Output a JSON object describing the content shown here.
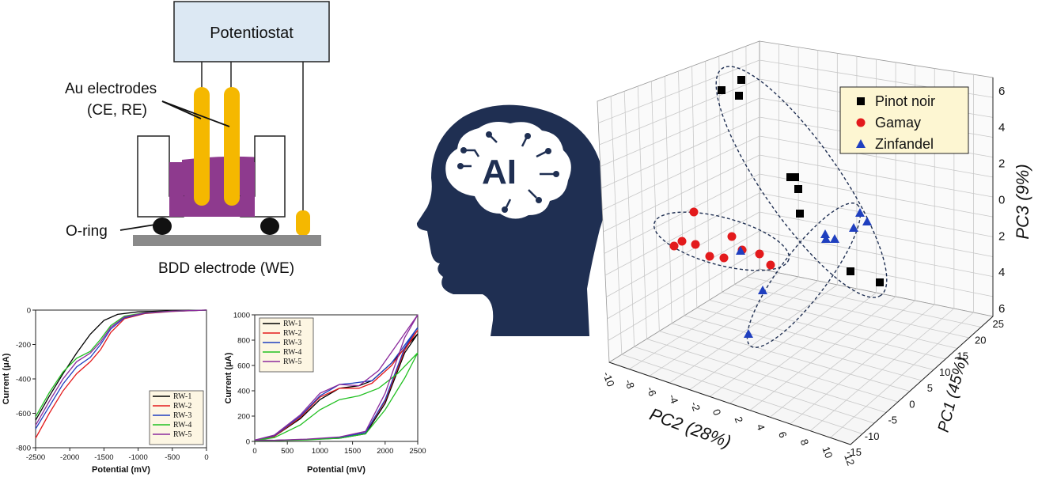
{
  "setup": {
    "potentiostat": "Potentiostat",
    "au_electrodes_line1": "Au electrodes",
    "au_electrodes_line2": "(CE, RE)",
    "oring": "O-ring",
    "bdd": "BDD electrode (WE)"
  },
  "ai": {
    "label": "AI"
  },
  "colors": {
    "cell": "#8e3a8e",
    "electrode": "#f5b800",
    "potentiostat": "#dce8f3",
    "head": "#1f2f52",
    "bdd": "#8a8a8a"
  },
  "chart_data": [
    {
      "type": "line",
      "xlabel": "Potential (mV)",
      "ylabel": "Current (μA)",
      "xlim": [
        -2500,
        0
      ],
      "ylim": [
        -800,
        0
      ],
      "xticks": [
        "-2500",
        "-2000",
        "-1500",
        "-1000",
        "-500",
        "0"
      ],
      "yticks": [
        "0",
        "-200",
        "-400",
        "-600",
        "-800"
      ],
      "legend": "bottom-right",
      "series": [
        {
          "name": "RW-1",
          "color": "#000000",
          "points": [
            [
              -2500,
              -640
            ],
            [
              -2300,
              -500
            ],
            [
              -2100,
              -370
            ],
            [
              -1900,
              -250
            ],
            [
              -1700,
              -140
            ],
            [
              -1500,
              -60
            ],
            [
              -1300,
              -25
            ],
            [
              -1000,
              -10
            ],
            [
              -500,
              -4
            ],
            [
              0,
              0
            ]
          ]
        },
        {
          "name": "RW-2",
          "color": "#e31a1c",
          "points": [
            [
              -2500,
              -745
            ],
            [
              -2300,
              -600
            ],
            [
              -2100,
              -470
            ],
            [
              -1900,
              -370
            ],
            [
              -1700,
              -300
            ],
            [
              -1550,
              -230
            ],
            [
              -1400,
              -130
            ],
            [
              -1200,
              -50
            ],
            [
              -900,
              -20
            ],
            [
              -500,
              -8
            ],
            [
              0,
              0
            ]
          ]
        },
        {
          "name": "RW-3",
          "color": "#1f3fbf",
          "points": [
            [
              -2500,
              -690
            ],
            [
              -2300,
              -560
            ],
            [
              -2100,
              -430
            ],
            [
              -1900,
              -330
            ],
            [
              -1700,
              -275
            ],
            [
              -1550,
              -200
            ],
            [
              -1400,
              -110
            ],
            [
              -1200,
              -45
            ],
            [
              -900,
              -18
            ],
            [
              -500,
              -7
            ],
            [
              0,
              0
            ]
          ]
        },
        {
          "name": "RW-4",
          "color": "#22c022",
          "points": [
            [
              -2500,
              -620
            ],
            [
              -2300,
              -480
            ],
            [
              -2100,
              -360
            ],
            [
              -1900,
              -280
            ],
            [
              -1700,
              -240
            ],
            [
              -1550,
              -170
            ],
            [
              -1400,
              -90
            ],
            [
              -1200,
              -35
            ],
            [
              -900,
              -15
            ],
            [
              -500,
              -6
            ],
            [
              0,
              0
            ]
          ]
        },
        {
          "name": "RW-5",
          "color": "#8b2a9c",
          "points": [
            [
              -2500,
              -670
            ],
            [
              -2300,
              -530
            ],
            [
              -2100,
              -400
            ],
            [
              -1900,
              -300
            ],
            [
              -1700,
              -250
            ],
            [
              -1550,
              -185
            ],
            [
              -1400,
              -100
            ],
            [
              -1200,
              -40
            ],
            [
              -900,
              -16
            ],
            [
              -500,
              -6
            ],
            [
              0,
              0
            ]
          ]
        }
      ]
    },
    {
      "type": "line",
      "xlabel": "Potential (mV)",
      "ylabel": "Current (μA)",
      "xlim": [
        0,
        2500
      ],
      "ylim": [
        0,
        1000
      ],
      "xticks": [
        "0",
        "500",
        "1000",
        "1500",
        "2000",
        "2500"
      ],
      "yticks": [
        "0",
        "200",
        "400",
        "600",
        "800",
        "1000"
      ],
      "legend": "top-left",
      "series": [
        {
          "name": "RW-1",
          "color": "#000000",
          "points": [
            [
              0,
              10
            ],
            [
              300,
              40
            ],
            [
              700,
              180
            ],
            [
              1000,
              330
            ],
            [
              1300,
              420
            ],
            [
              1600,
              440
            ],
            [
              1800,
              480
            ],
            [
              2100,
              620
            ],
            [
              2500,
              850
            ],
            [
              2300,
              700
            ],
            [
              2000,
              300
            ],
            [
              1700,
              60
            ],
            [
              1300,
              25
            ],
            [
              800,
              15
            ],
            [
              300,
              8
            ],
            [
              0,
              10
            ]
          ]
        },
        {
          "name": "RW-2",
          "color": "#e31a1c",
          "points": [
            [
              0,
              10
            ],
            [
              300,
              40
            ],
            [
              700,
              190
            ],
            [
              1000,
              350
            ],
            [
              1300,
              420
            ],
            [
              1600,
              420
            ],
            [
              1800,
              460
            ],
            [
              2100,
              600
            ],
            [
              2500,
              880
            ],
            [
              2300,
              720
            ],
            [
              2000,
              320
            ],
            [
              1700,
              70
            ],
            [
              1300,
              30
            ],
            [
              800,
              15
            ],
            [
              300,
              8
            ],
            [
              0,
              10
            ]
          ]
        },
        {
          "name": "RW-3",
          "color": "#1f3fbf",
          "points": [
            [
              0,
              10
            ],
            [
              300,
              45
            ],
            [
              700,
              200
            ],
            [
              1000,
              360
            ],
            [
              1300,
              450
            ],
            [
              1500,
              460
            ],
            [
              1800,
              480
            ],
            [
              2100,
              620
            ],
            [
              2500,
              900
            ],
            [
              2300,
              740
            ],
            [
              2000,
              330
            ],
            [
              1700,
              70
            ],
            [
              1300,
              30
            ],
            [
              800,
              15
            ],
            [
              300,
              8
            ],
            [
              0,
              10
            ]
          ]
        },
        {
          "name": "RW-4",
          "color": "#22c022",
          "points": [
            [
              0,
              8
            ],
            [
              300,
              30
            ],
            [
              700,
              130
            ],
            [
              1000,
              250
            ],
            [
              1300,
              330
            ],
            [
              1600,
              360
            ],
            [
              1900,
              420
            ],
            [
              2200,
              540
            ],
            [
              2500,
              700
            ],
            [
              2300,
              500
            ],
            [
              2000,
              250
            ],
            [
              1700,
              60
            ],
            [
              1300,
              25
            ],
            [
              800,
              12
            ],
            [
              300,
              6
            ],
            [
              0,
              8
            ]
          ]
        },
        {
          "name": "RW-5",
          "color": "#8b2a9c",
          "points": [
            [
              0,
              10
            ],
            [
              300,
              50
            ],
            [
              700,
              210
            ],
            [
              1000,
              380
            ],
            [
              1300,
              450
            ],
            [
              1600,
              440
            ],
            [
              1900,
              560
            ],
            [
              2200,
              780
            ],
            [
              2500,
              1000
            ],
            [
              2300,
              820
            ],
            [
              2000,
              380
            ],
            [
              1700,
              80
            ],
            [
              1300,
              35
            ],
            [
              800,
              18
            ],
            [
              300,
              9
            ],
            [
              0,
              10
            ]
          ]
        }
      ]
    },
    {
      "type": "scatter",
      "xlabel": "PC2 (28%)",
      "ylabel": "PC1 (45%)",
      "zlabel": "PC3 (9%)",
      "xticks": [
        "-10",
        "-8",
        "-6",
        "-4",
        "-2",
        "0",
        "2",
        "4",
        "6",
        "8",
        "10",
        "12"
      ],
      "yticks": [
        "25",
        "20",
        "15",
        "10",
        "5",
        "0",
        "-5",
        "-10",
        "-15"
      ],
      "zticks": [
        "6",
        "4",
        "2",
        "0",
        "2",
        "4",
        "6"
      ],
      "legend": "top-right",
      "series": [
        {
          "name": "Pinot noir",
          "marker": "square",
          "color": "#000000",
          "screen_proj": [
            [
              937,
              101
            ],
            [
              912,
              114
            ],
            [
              934,
              121
            ],
            [
              999,
              224
            ],
            [
              1005,
              224
            ],
            [
              1009,
              239
            ],
            [
              1011,
              270
            ],
            [
              1075,
              343
            ],
            [
              1112,
              357
            ]
          ]
        },
        {
          "name": "Gamay",
          "marker": "circle",
          "color": "#e31a1c",
          "screen_proj": [
            [
              877,
              268
            ],
            [
              852,
              311
            ],
            [
              862,
              305
            ],
            [
              879,
              309
            ],
            [
              897,
              324
            ],
            [
              915,
              326
            ],
            [
              925,
              299
            ],
            [
              938,
              316
            ],
            [
              960,
              321
            ],
            [
              974,
              335
            ]
          ]
        },
        {
          "name": "Zinfandel",
          "marker": "triangle",
          "color": "#1f3fbf",
          "screen_proj": [
            [
              936,
              317
            ],
            [
              964,
              367
            ],
            [
              946,
              422
            ],
            [
              1043,
              296
            ],
            [
              1044,
              302
            ],
            [
              1055,
              302
            ],
            [
              1079,
              288
            ],
            [
              1087,
              269
            ],
            [
              1096,
              280
            ]
          ]
        }
      ]
    }
  ]
}
